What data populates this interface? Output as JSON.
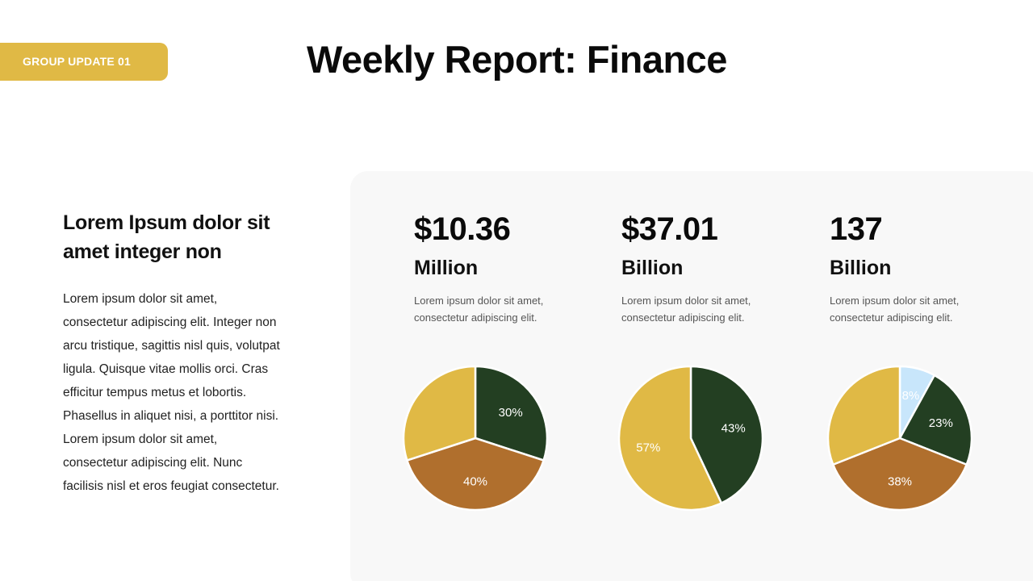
{
  "header": {
    "tag": "GROUP UPDATE 01",
    "title": "Weekly Report: Finance"
  },
  "intro": {
    "heading": "Lorem Ipsum dolor sit amet integer non",
    "body": "Lorem ipsum dolor sit amet, consectetur adipiscing elit. Integer non arcu tristique, sagittis nisl quis, volutpat ligula. Quisque vitae mollis orci. Cras efficitur tempus metus et lobortis. Phasellus in aliquet nisi, a porttitor nisi. Lorem ipsum dolor sit amet, consectetur adipiscing elit. Nunc facilisis nisl et eros feugiat consectetur."
  },
  "stats": [
    {
      "value": "$10.36",
      "unit": "Million",
      "desc": "Lorem ipsum dolor sit amet, consectetur adipiscing elit."
    },
    {
      "value": "$37.01",
      "unit": "Billion",
      "desc": "Lorem ipsum dolor sit amet, consectetur adipiscing elit."
    },
    {
      "value": "137",
      "unit": "Billion",
      "desc": "Lorem ipsum dolor sit amet, consectetur adipiscing elit."
    }
  ],
  "colors": {
    "gold": "#e0b945",
    "dark_green": "#233f22",
    "brown": "#b06f2d",
    "light_blue": "#c8e6fb",
    "panel_bg": "#f8f8f8"
  },
  "chart_data": [
    {
      "type": "pie",
      "slices": [
        {
          "label": "30%",
          "value": 30,
          "color": "#233f22"
        },
        {
          "label": "40%",
          "value": 40,
          "color": "#b06f2d"
        },
        {
          "label": "",
          "value": 30,
          "color": "#e0b945"
        }
      ]
    },
    {
      "type": "pie",
      "slices": [
        {
          "label": "43%",
          "value": 43,
          "color": "#233f22"
        },
        {
          "label": "57%",
          "value": 57,
          "color": "#e0b945"
        }
      ]
    },
    {
      "type": "pie",
      "slices": [
        {
          "label": "8%",
          "value": 8,
          "color": "#c8e6fb"
        },
        {
          "label": "23%",
          "value": 23,
          "color": "#233f22"
        },
        {
          "label": "38%",
          "value": 38,
          "color": "#b06f2d"
        },
        {
          "label": "",
          "value": 31,
          "color": "#e0b945"
        }
      ]
    }
  ]
}
